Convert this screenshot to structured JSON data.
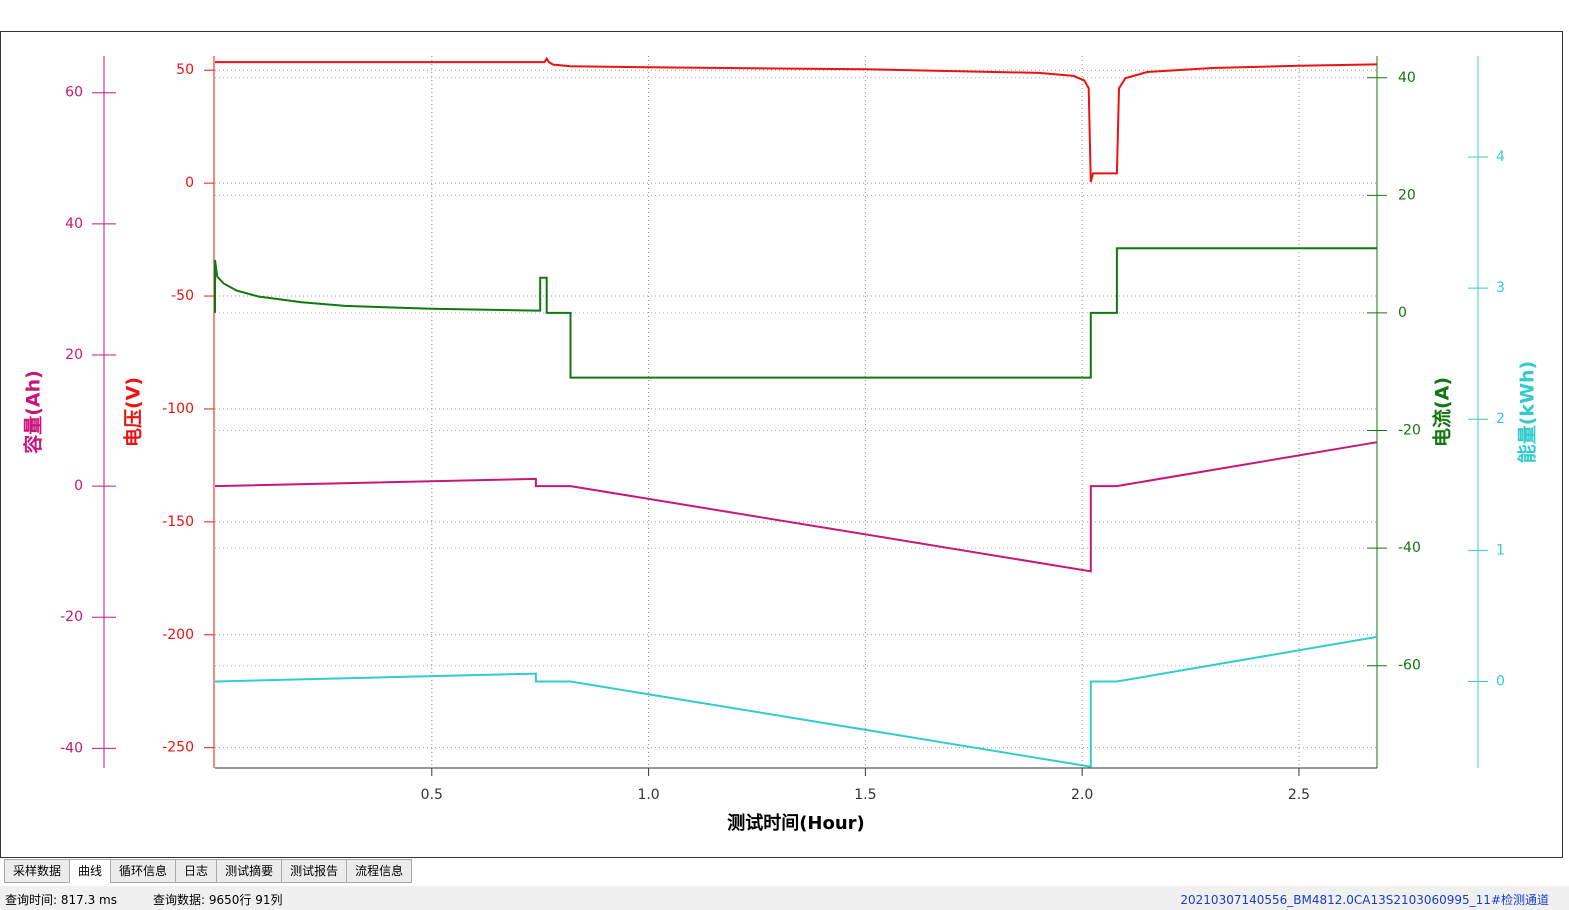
{
  "chart_data": {
    "type": "line",
    "xlabel": "测试时间(Hour)",
    "xlim": [
      0,
      2.68
    ],
    "xticks": [
      0.5,
      {
        "value": 1,
        "label": "1.0"
      },
      1.5,
      {
        "value": 2,
        "label": "2.0"
      },
      2.5
    ],
    "grid": true,
    "axes": [
      {
        "label": "容量(Ah)",
        "color": "#c8177a",
        "ylim": [
          -43,
          65.6
        ],
        "yticks": [
          60,
          40,
          20,
          0,
          -20,
          -40
        ],
        "x": [
          0,
          0.74,
          0.74,
          0.82,
          2.02,
          2.02,
          2.08,
          2.68
        ],
        "values": [
          0,
          1.1,
          0,
          0,
          -13,
          0,
          0,
          6.7
        ]
      },
      {
        "label": "电压(V)",
        "color": "#ee1111",
        "ylim": [
          -259,
          56.3
        ],
        "yticks": [
          50,
          0,
          -50,
          -100,
          -150,
          -200,
          -250
        ],
        "x": [
          0,
          0.74,
          0.76,
          0.765,
          0.77,
          0.78,
          0.82,
          1.0,
          1.5,
          1.9,
          1.98,
          2.005,
          2.015,
          2.02,
          2.025,
          2.03,
          2.08,
          2.085,
          2.1,
          2.15,
          2.3,
          2.5,
          2.68
        ],
        "values": [
          53.6,
          53.6,
          53.6,
          55.2,
          53.6,
          52.5,
          51.8,
          51.3,
          50.4,
          48.8,
          47.5,
          45.5,
          42,
          0.5,
          4.3,
          4.3,
          4.3,
          42,
          46.5,
          49.2,
          51,
          52,
          52.6
        ]
      },
      {
        "label": "电流(A)",
        "color": "#117711",
        "ylim": [
          -77.4,
          43.7
        ],
        "yticks": [
          40,
          20,
          0,
          -20,
          -40,
          -60
        ],
        "x": [
          0,
          0,
          0.005,
          0.02,
          0.05,
          0.1,
          0.2,
          0.3,
          0.5,
          0.74,
          0.75,
          0.75,
          0.765,
          0.765,
          0.82,
          0.82,
          2.02,
          2.02,
          2.08,
          2.08,
          2.68
        ],
        "values": [
          0,
          9,
          6.2,
          5,
          3.8,
          2.8,
          1.8,
          1.2,
          0.7,
          0.4,
          0.4,
          6,
          6,
          0,
          0,
          -11,
          -11,
          0,
          0,
          11,
          11
        ]
      },
      {
        "label": "能量(kWh)",
        "color": "#33cccc",
        "ylim": [
          -0.66,
          4.77
        ],
        "yticks": [
          4,
          3,
          2,
          1,
          0
        ],
        "x": [
          0,
          0.74,
          0.74,
          0.82,
          2.02,
          2.02,
          2.08,
          2.68
        ],
        "values": [
          0,
          0.06,
          0,
          0,
          -0.65,
          0,
          0,
          0.34
        ]
      }
    ]
  },
  "tabs": [
    "采样数据",
    "曲线",
    "循环信息",
    "日志",
    "测试摘要",
    "测试报告",
    "流程信息"
  ],
  "status": {
    "query_time": "查询时间: 817.3 ms",
    "query_data": "查询数据: 9650行 91列",
    "channel": "20210307140556_BM4812.0CA13S2103060995_11#检测通道"
  }
}
